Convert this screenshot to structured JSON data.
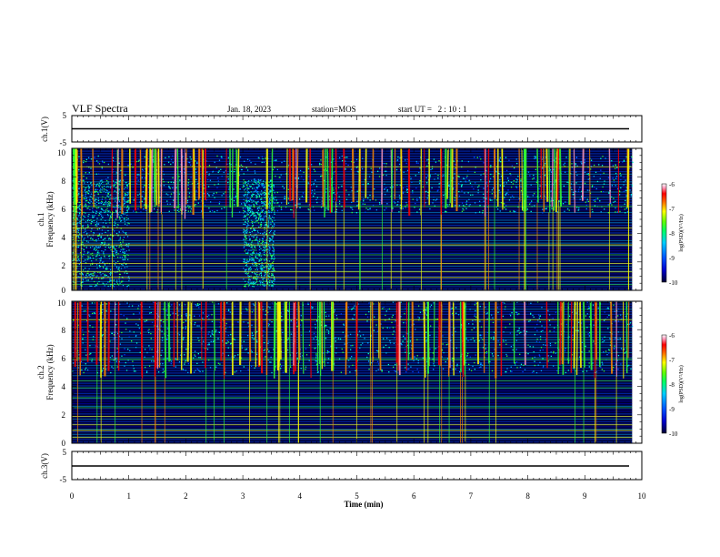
{
  "header": {
    "title": "VLF Spectra",
    "date": "Jan. 18, 2023",
    "station": "station=MOS",
    "start_ut": "start UT =   2 : 10 : 1"
  },
  "colors": {
    "cmap": [
      "#000033",
      "#0000cc",
      "#0044ff",
      "#00aaff",
      "#00ffcc",
      "#33ff33",
      "#ffff00",
      "#ff8800",
      "#ff0000",
      "#ff99bb",
      "#ffffff"
    ],
    "background": "#ffffff",
    "trace": "#000000"
  },
  "chart_data": [
    {
      "type": "line",
      "panel": "ch.1",
      "ylabel": "ch.1(V)",
      "ylim": [
        -5,
        5
      ],
      "yticks": [
        "5",
        "-5"
      ],
      "series": [
        {
          "x": [
            0,
            9.83
          ],
          "y": [
            0,
            0
          ]
        }
      ]
    },
    {
      "type": "heatmap",
      "panel": "ch.1",
      "ylabel_top": "ch.1",
      "ylabel": "Frequency (kHz)",
      "ylim": [
        0,
        10
      ],
      "yticks": [
        "0",
        "2",
        "4",
        "6",
        "8",
        "10"
      ],
      "xlim": [
        0,
        10
      ],
      "data_extent_min": 9.83,
      "broadband_noise_min": [
        [
          0,
          1.0
        ],
        [
          3.0,
          3.55
        ]
      ],
      "emission_band_khz": [
        5.5,
        9.5
      ],
      "colorbar": {
        "label": "log(PSD)(V²/Hz)",
        "range": [
          -10,
          -6
        ],
        "ticks": [
          "-6",
          "-7",
          "-8",
          "-9",
          "-10"
        ]
      }
    },
    {
      "type": "heatmap",
      "panel": "ch.2",
      "ylabel_top": "ch.2",
      "ylabel": "Frequency (kHz)",
      "ylim": [
        0,
        10
      ],
      "yticks": [
        "0",
        "2",
        "4",
        "6",
        "8",
        "10"
      ],
      "xlim": [
        0,
        10
      ],
      "data_extent_min": 9.83,
      "emission_band_khz": [
        5.0,
        10.0
      ],
      "colorbar": {
        "label": "log(PSD)(V²/Hz)",
        "range": [
          -10,
          -6
        ],
        "ticks": [
          "-6",
          "-7",
          "-8",
          "-9",
          "-10"
        ]
      }
    },
    {
      "type": "line",
      "panel": "ch.3",
      "ylabel": "ch.3(V)",
      "ylim": [
        -5,
        5
      ],
      "yticks": [
        "5",
        "-5"
      ],
      "series": [
        {
          "x": [
            0,
            9.83
          ],
          "y": [
            0,
            0
          ]
        }
      ]
    }
  ],
  "xaxis": {
    "label": "Time (min)",
    "range": [
      0,
      10
    ],
    "ticks": [
      "0",
      "1",
      "2",
      "3",
      "4",
      "5",
      "6",
      "7",
      "8",
      "9",
      "10"
    ]
  }
}
